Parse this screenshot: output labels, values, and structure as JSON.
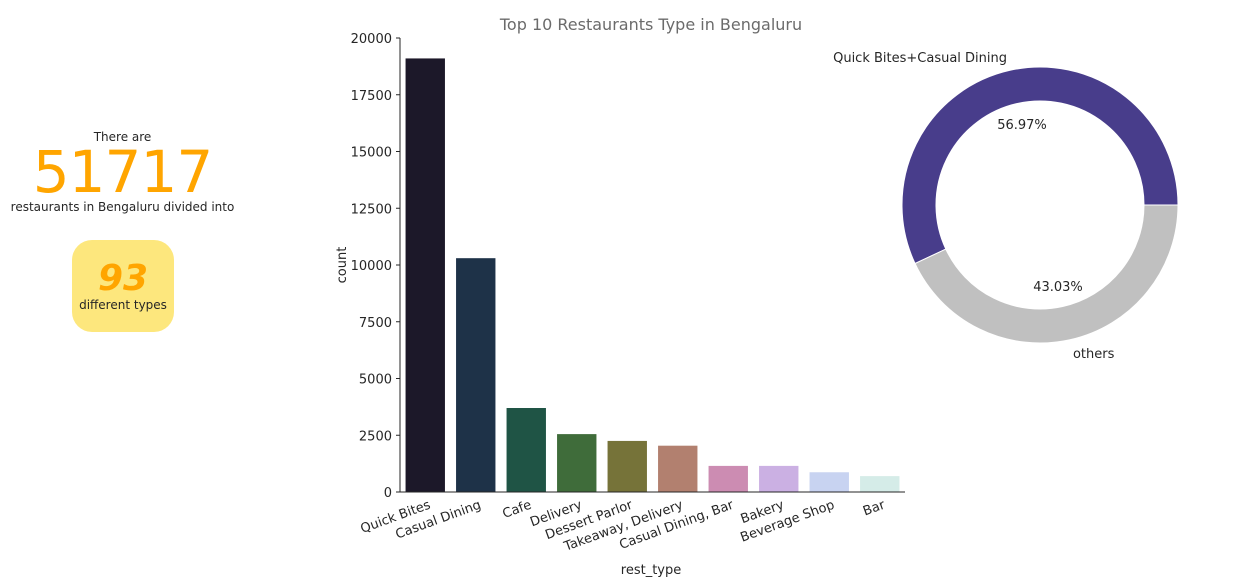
{
  "kpi": {
    "prefix": "There are",
    "total": "51717",
    "suffix": "restaurants in Bengaluru divided into",
    "types_count": "93",
    "types_label": "different types"
  },
  "colors": {
    "accent": "#ffa500",
    "badge_bg": "#fde77d",
    "donut_primary": "#483d8b",
    "donut_secondary": "#c0c0c0"
  },
  "chart_data": [
    {
      "type": "bar",
      "title": "Top 10 Restaurants Type in Bengaluru",
      "xlabel": "rest_type",
      "ylabel": "count",
      "ylim": [
        0,
        20000
      ],
      "yticks": [
        0,
        2500,
        5000,
        7500,
        10000,
        12500,
        15000,
        17500,
        20000
      ],
      "categories": [
        "Quick Bites",
        "Casual Dining",
        "Cafe",
        "Delivery",
        "Dessert Parlor",
        "Takeaway, Delivery",
        "Casual Dining, Bar",
        "Bakery",
        "Beverage Shop",
        "Bar"
      ],
      "values": [
        19100,
        10300,
        3700,
        2550,
        2250,
        2040,
        1150,
        1150,
        870,
        700
      ],
      "bar_colors": [
        "#1c1829",
        "#1e3248",
        "#1f5445",
        "#3f6c3a",
        "#767339",
        "#b2806f",
        "#cc8cb2",
        "#cbb0e3",
        "#c8d3f1",
        "#d5ece8"
      ],
      "grid": false
    },
    {
      "type": "pie",
      "style": "donut",
      "labels": [
        "Quick Bites+Casual Dining",
        "others"
      ],
      "values": [
        56.97,
        43.03
      ],
      "value_labels": [
        "56.97%",
        "43.03%"
      ],
      "colors": [
        "#483d8b",
        "#c0c0c0"
      ]
    }
  ]
}
